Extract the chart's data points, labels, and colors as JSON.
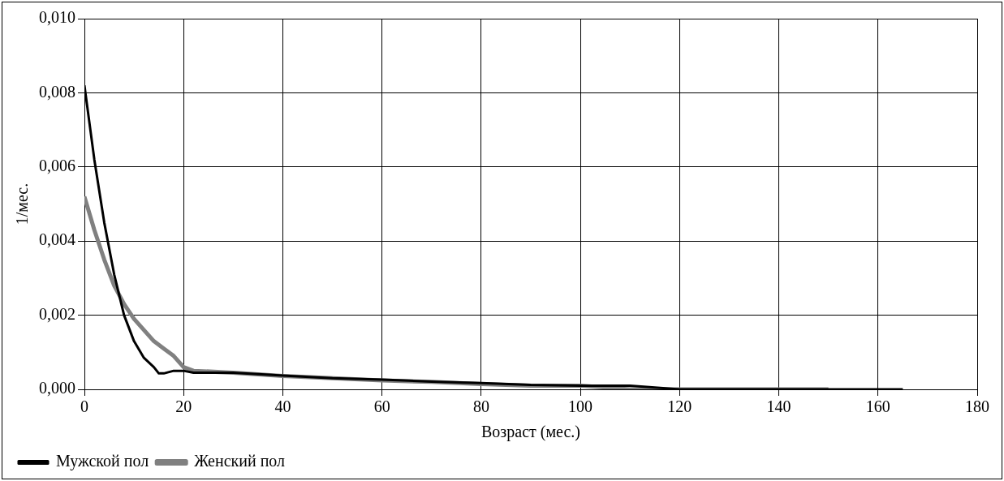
{
  "chart_data": {
    "type": "line",
    "xlabel": "Возраст (мес.)",
    "ylabel": "1/мес.",
    "xlim": [
      0,
      180
    ],
    "xticks": [
      0,
      20,
      40,
      60,
      80,
      100,
      120,
      140,
      160,
      180
    ],
    "ylim": [
      0,
      0.01
    ],
    "yticks": [
      {
        "value": 0,
        "label": "0,000"
      },
      {
        "value": 0.002,
        "label": "0,002"
      },
      {
        "value": 0.004,
        "label": "0,004"
      },
      {
        "value": 0.006,
        "label": "0,006"
      },
      {
        "value": 0.008,
        "label": "0,008"
      },
      {
        "value": 0.01,
        "label": "0,010"
      }
    ],
    "grid": true,
    "legend": "bottom left",
    "marker": "none",
    "line_style": "solid",
    "series": [
      {
        "name": "Мужской пол",
        "color": "#000000",
        "x": [
          0,
          2,
          4,
          6,
          8,
          10,
          12,
          14,
          15,
          16,
          18,
          20,
          22,
          30,
          40,
          50,
          60,
          70,
          80,
          90,
          100,
          110,
          120,
          128,
          140,
          150,
          165
        ],
        "values": [
          0.0082,
          0.0062,
          0.0045,
          0.0031,
          0.002,
          0.0013,
          0.00085,
          0.0006,
          0.00043,
          0.00043,
          0.0005,
          0.0005,
          0.00045,
          0.00045,
          0.00037,
          0.0003,
          0.00026,
          0.00021,
          0.00017,
          0.00012,
          0.0001,
          0.0001,
          0,
          0,
          0,
          0,
          0
        ]
      },
      {
        "name": "Женский пол",
        "color": "#808080",
        "x": [
          0,
          2,
          4,
          6,
          8,
          10,
          12,
          14,
          16,
          18,
          20,
          22,
          30,
          40,
          50,
          60,
          70,
          80,
          90,
          100,
          110,
          120,
          128,
          140,
          150
        ],
        "values": [
          0.0052,
          0.0043,
          0.0035,
          0.0028,
          0.0023,
          0.0019,
          0.0016,
          0.0013,
          0.0011,
          0.0009,
          0.0006,
          0.0005,
          0.00045,
          0.00036,
          0.0003,
          0.00024,
          0.0002,
          0.00014,
          0.0001,
          0.0001,
          0,
          0,
          0,
          0,
          0
        ]
      }
    ]
  }
}
